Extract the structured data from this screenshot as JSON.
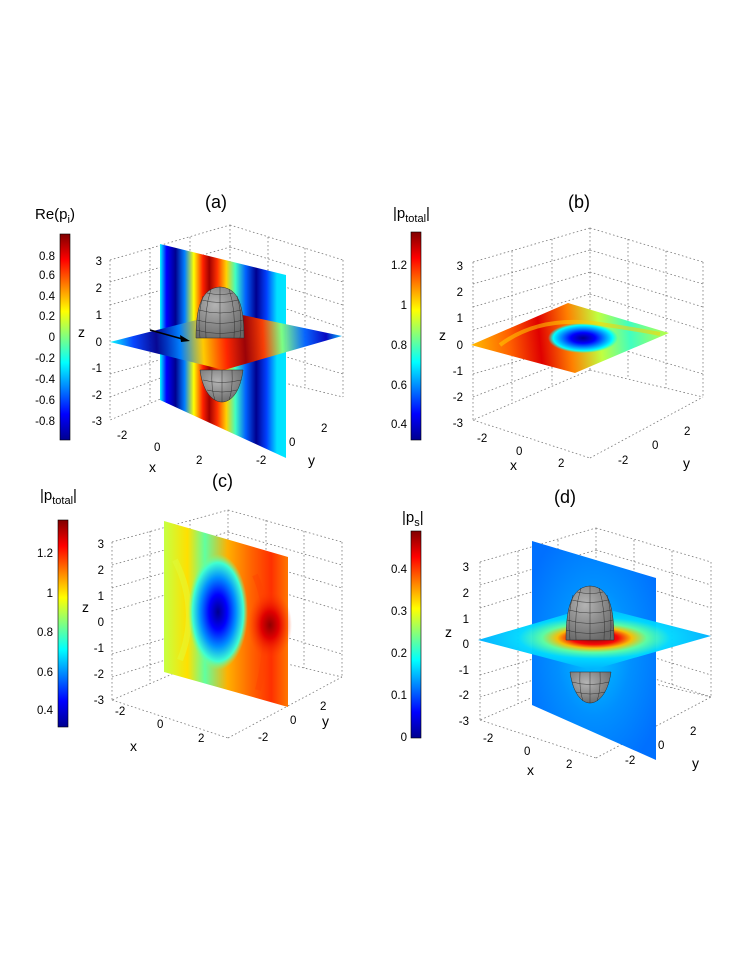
{
  "colors": {
    "jet": [
      "#00008f",
      "#0000ff",
      "#0080ff",
      "#00ffff",
      "#80ff80",
      "#ffff00",
      "#ff8000",
      "#ff0000",
      "#800000"
    ],
    "ellipsoid": "#8c8c8c",
    "ellipsoid_grid": "#2a2a2a",
    "grid": "#7a7a7a"
  },
  "chart_data": [
    {
      "panel": "a",
      "type": "heatmap",
      "title": "(a)",
      "xlabel": "x",
      "ylabel": "y",
      "zlabel": "z",
      "xticks": [
        "-2",
        "0",
        "2"
      ],
      "yticks": [
        "-2",
        "0",
        "2"
      ],
      "zticks": [
        "3",
        "2",
        "1",
        "0",
        "-1",
        "-2",
        "-3"
      ],
      "xlim": [
        -3,
        3
      ],
      "ylim": [
        -3,
        3
      ],
      "zlim": [
        -3,
        3
      ],
      "slices": [
        "xz-plane",
        "xy-plane"
      ],
      "object": "prolate ellipsoid",
      "colorbar": {
        "label_main": "Re(p",
        "label_sub": "i",
        "label_end": ")",
        "ticks": [
          "0.8",
          "0.6",
          "0.4",
          "0.2",
          "0",
          "-0.2",
          "-0.4",
          "-0.6",
          "-0.8"
        ],
        "range": [
          -1,
          1
        ]
      }
    },
    {
      "panel": "b",
      "type": "heatmap",
      "title": "(b)",
      "xlabel": "x",
      "ylabel": "y",
      "zlabel": "z",
      "xticks": [
        "-2",
        "0",
        "2"
      ],
      "yticks": [
        "-2",
        "0",
        "2"
      ],
      "zticks": [
        "3",
        "2",
        "1",
        "0",
        "-1",
        "-2",
        "-3"
      ],
      "slices": [
        "xy-plane"
      ],
      "colorbar": {
        "label_main": "|p",
        "label_sub": "total",
        "label_end": "|",
        "ticks": [
          "1.2",
          "1",
          "0.8",
          "0.6",
          "0.4"
        ],
        "range": [
          0.33,
          1.37
        ]
      }
    },
    {
      "panel": "c",
      "type": "heatmap",
      "title": "(c)",
      "xlabel": "x",
      "ylabel": "y",
      "zlabel": "z",
      "xticks": [
        "-2",
        "0",
        "2"
      ],
      "yticks": [
        "-2",
        "0",
        "2"
      ],
      "zticks": [
        "3",
        "2",
        "1",
        "0",
        "-1",
        "-2",
        "-3"
      ],
      "slices": [
        "xz-plane"
      ],
      "colorbar": {
        "label_main": "|p",
        "label_sub": "total",
        "label_end": "|",
        "ticks": [
          "1.2",
          "1",
          "0.8",
          "0.6",
          "0.4"
        ],
        "range": [
          0.33,
          1.37
        ]
      }
    },
    {
      "panel": "d",
      "type": "heatmap",
      "title": "(d)",
      "xlabel": "x",
      "ylabel": "y",
      "zlabel": "z",
      "xticks": [
        "-2",
        "0",
        "2"
      ],
      "yticks": [
        "-2",
        "0",
        "2"
      ],
      "zticks": [
        "3",
        "2",
        "1",
        "0",
        "-1",
        "-2",
        "-3"
      ],
      "slices": [
        "xz-plane",
        "xy-plane"
      ],
      "object": "prolate ellipsoid",
      "colorbar": {
        "label_main": "|p",
        "label_sub": "s",
        "label_end": "|",
        "ticks": [
          "0.4",
          "0.3",
          "0.2",
          "0.1",
          "0"
        ],
        "range": [
          0,
          0.48
        ]
      }
    }
  ]
}
